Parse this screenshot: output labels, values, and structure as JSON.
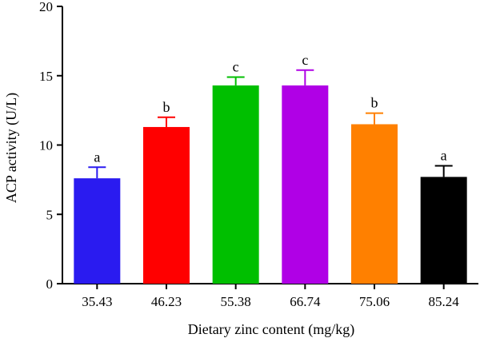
{
  "chart_data": {
    "type": "bar",
    "title": "",
    "xlabel": "Dietary zinc content (mg/kg)",
    "ylabel": "ACP activity (U/L)",
    "ylim": [
      0,
      20
    ],
    "yticks": [
      "0",
      "5",
      "10",
      "15",
      "20"
    ],
    "categories": [
      "35.43",
      "46.23",
      "55.38",
      "66.74",
      "75.06",
      "85.24"
    ],
    "values": [
      7.6,
      11.3,
      14.3,
      14.3,
      11.5,
      7.7
    ],
    "errors": [
      0.8,
      0.7,
      0.6,
      1.1,
      0.8,
      0.8
    ],
    "significance": [
      "a",
      "b",
      "c",
      "c",
      "b",
      "a"
    ],
    "colors": [
      "#2a1bf0",
      "#ff0000",
      "#00bf00",
      "#b000e6",
      "#ff8000",
      "#000000"
    ],
    "grid": false,
    "legend": "none"
  }
}
